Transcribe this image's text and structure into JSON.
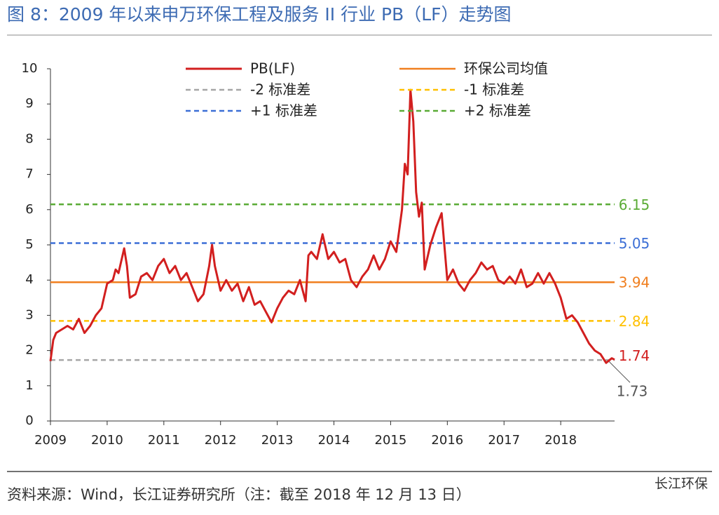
{
  "chart_data": {
    "type": "line",
    "title": "图 8：2009 年以来申万环保工程及服务 II 行业 PB（LF）走势图",
    "source": "资料来源：Wind，长江证券研究所（注：截至 2018 年 12 月 13 日）",
    "watermark": "长江环保",
    "xlim": [
      2009,
      2018.95
    ],
    "xticks": [
      2009,
      2010,
      2011,
      2012,
      2013,
      2014,
      2015,
      2016,
      2017,
      2018
    ],
    "ylim": [
      0,
      10
    ],
    "yticks": [
      0,
      1,
      2,
      3,
      4,
      5,
      6,
      7,
      8,
      9,
      10
    ],
    "x": [
      2009.0,
      2009.05,
      2009.1,
      2009.2,
      2009.3,
      2009.4,
      2009.5,
      2009.6,
      2009.7,
      2009.8,
      2009.9,
      2010.0,
      2010.1,
      2010.15,
      2010.2,
      2010.3,
      2010.35,
      2010.4,
      2010.5,
      2010.6,
      2010.7,
      2010.8,
      2010.9,
      2011.0,
      2011.1,
      2011.2,
      2011.3,
      2011.4,
      2011.5,
      2011.6,
      2011.7,
      2011.8,
      2011.85,
      2011.9,
      2012.0,
      2012.1,
      2012.2,
      2012.3,
      2012.4,
      2012.5,
      2012.6,
      2012.7,
      2012.8,
      2012.9,
      2013.0,
      2013.1,
      2013.2,
      2013.3,
      2013.4,
      2013.5,
      2013.55,
      2013.6,
      2013.7,
      2013.8,
      2013.9,
      2014.0,
      2014.1,
      2014.2,
      2014.3,
      2014.4,
      2014.5,
      2014.6,
      2014.7,
      2014.8,
      2014.9,
      2015.0,
      2015.1,
      2015.2,
      2015.25,
      2015.3,
      2015.35,
      2015.4,
      2015.45,
      2015.5,
      2015.55,
      2015.6,
      2015.7,
      2015.8,
      2015.9,
      2016.0,
      2016.1,
      2016.2,
      2016.3,
      2016.4,
      2016.5,
      2016.6,
      2016.7,
      2016.8,
      2016.9,
      2017.0,
      2017.1,
      2017.2,
      2017.3,
      2017.4,
      2017.5,
      2017.6,
      2017.7,
      2017.8,
      2017.9,
      2018.0,
      2018.1,
      2018.2,
      2018.3,
      2018.4,
      2018.5,
      2018.6,
      2018.7,
      2018.8,
      2018.9,
      2018.95
    ],
    "series": [
      {
        "name": "PB(LF)",
        "color": "#d21f1f",
        "values": [
          1.7,
          2.3,
          2.5,
          2.6,
          2.7,
          2.6,
          2.9,
          2.5,
          2.7,
          3.0,
          3.2,
          3.9,
          4.0,
          4.3,
          4.2,
          4.9,
          4.4,
          3.5,
          3.6,
          4.1,
          4.2,
          4.0,
          4.4,
          4.6,
          4.2,
          4.4,
          4.0,
          4.2,
          3.8,
          3.4,
          3.6,
          4.4,
          5.0,
          4.4,
          3.7,
          4.0,
          3.7,
          3.9,
          3.4,
          3.8,
          3.3,
          3.4,
          3.1,
          2.8,
          3.2,
          3.5,
          3.7,
          3.6,
          4.0,
          3.4,
          4.7,
          4.8,
          4.6,
          5.3,
          4.6,
          4.8,
          4.5,
          4.6,
          4.0,
          3.8,
          4.1,
          4.3,
          4.7,
          4.3,
          4.6,
          5.1,
          4.8,
          6.0,
          7.3,
          7.0,
          9.4,
          8.5,
          6.5,
          5.8,
          6.2,
          4.3,
          5.0,
          5.5,
          5.9,
          4.0,
          4.3,
          3.9,
          3.7,
          4.0,
          4.2,
          4.5,
          4.3,
          4.4,
          4.0,
          3.9,
          4.1,
          3.9,
          4.3,
          3.8,
          3.9,
          4.2,
          3.9,
          4.2,
          3.9,
          3.5,
          2.9,
          3.0,
          2.8,
          2.5,
          2.2,
          2.0,
          1.9,
          1.65,
          1.78,
          1.74
        ]
      }
    ],
    "reference_lines": [
      {
        "name": "环保公司均值",
        "value": 3.94,
        "color": "#f07f1f",
        "dashed": false
      },
      {
        "name": "-2 标准差",
        "value": 1.73,
        "color": "#a6a6a6",
        "dashed": true
      },
      {
        "name": "-1 标准差",
        "value": 2.84,
        "color": "#ffc000",
        "dashed": true
      },
      {
        "name": "+1 标准差",
        "value": 5.05,
        "color": "#3c6fd6",
        "dashed": true
      },
      {
        "name": "+2 标准差",
        "value": 6.15,
        "color": "#5aab35",
        "dashed": true
      }
    ]
  }
}
